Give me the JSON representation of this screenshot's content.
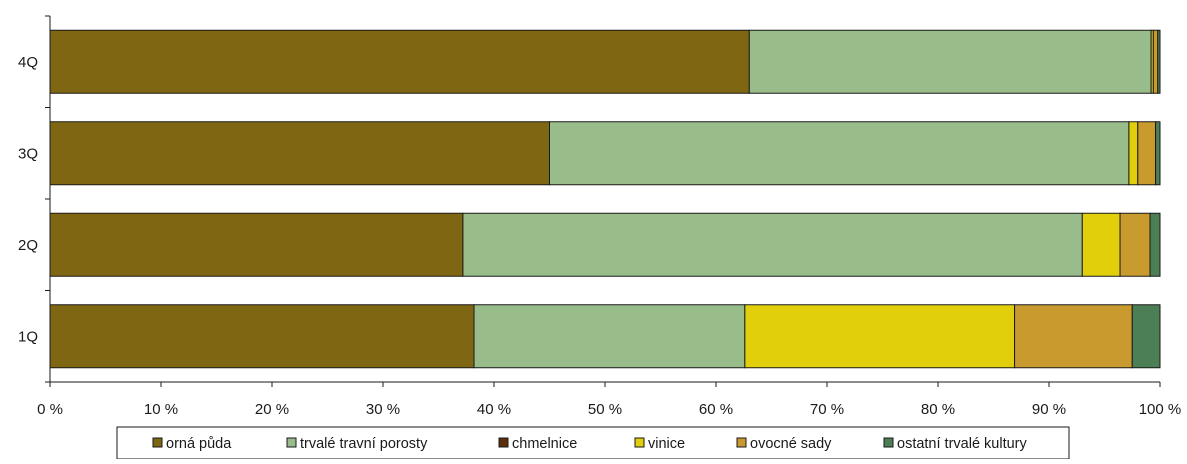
{
  "chart_data": {
    "type": "bar",
    "orientation": "horizontal",
    "stacked": "percent",
    "categories": [
      "4Q",
      "3Q",
      "2Q",
      "1Q"
    ],
    "series": [
      {
        "name": "orná půda",
        "color": "#7f6612",
        "values": [
          63.0,
          45.0,
          37.2,
          38.2
        ]
      },
      {
        "name": "trvalé travní porosty",
        "color": "#98bc8a",
        "values": [
          36.2,
          52.2,
          55.8,
          24.4
        ]
      },
      {
        "name": "chmelnice",
        "color": "#5a2d0c",
        "values": [
          0,
          0,
          0,
          0
        ]
      },
      {
        "name": "vinice",
        "color": "#e2cf0c",
        "values": [
          0.2,
          0.8,
          3.4,
          24.3
        ]
      },
      {
        "name": "ovocné sady",
        "color": "#c99b2e",
        "values": [
          0.4,
          1.6,
          2.7,
          10.6
        ]
      },
      {
        "name": "ostatní trvalé kultury",
        "color": "#4c7f55",
        "values": [
          0.2,
          0.4,
          0.9,
          2.5
        ]
      }
    ],
    "xaxis": {
      "ticks": [
        "0 %",
        "10 %",
        "20 %",
        "30 %",
        "40 %",
        "50 %",
        "60 %",
        "70 %",
        "80 %",
        "90 %",
        "100 %"
      ],
      "range": [
        0,
        100
      ]
    },
    "grid": false,
    "legend": "bottom"
  }
}
